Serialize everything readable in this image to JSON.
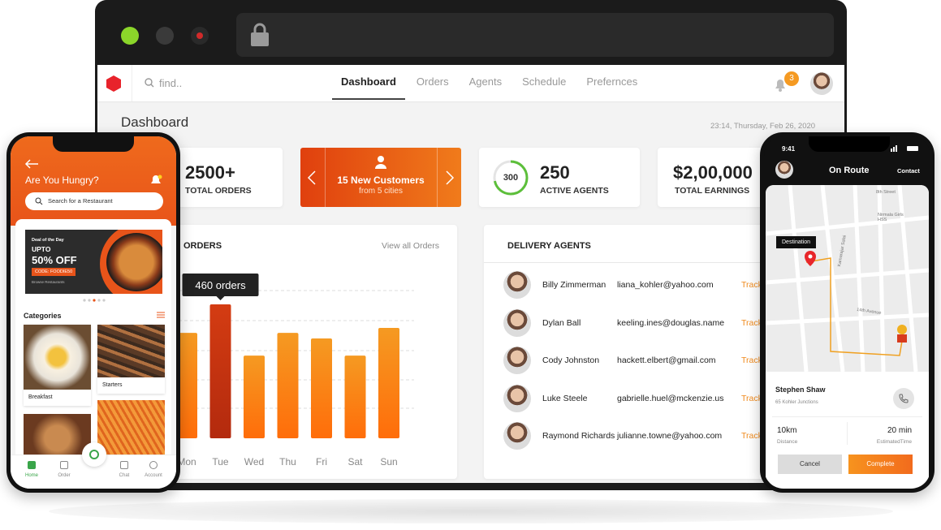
{
  "browser": {
    "search_placeholder": "find..",
    "nav": [
      "Dashboard",
      "Orders",
      "Agents",
      "Schedule",
      "Prefernces"
    ],
    "notification_count": "3"
  },
  "dashboard": {
    "title": "Dashboard",
    "datetime": "23:14, Thursday, Feb 26, 2020",
    "stats": [
      {
        "value": "2500+",
        "label": "TOTAL ORDERS"
      },
      {
        "title": "15 New Customers",
        "subtitle": "from 5 cities"
      },
      {
        "badge": "300",
        "value": "250",
        "label": "ACTIVE AGENTS"
      },
      {
        "value": "$2,00,000",
        "label": "TOTAL EARNINGS"
      }
    ],
    "orders_chart": {
      "type": "bar",
      "title": "ORDERS",
      "link": "View all Orders",
      "categories": [
        "Mon",
        "Tue",
        "Wed",
        "Thu",
        "Fri",
        "Sat",
        "Sun"
      ],
      "values": [
        362,
        460,
        284,
        362,
        343,
        284,
        379
      ],
      "value_labels": [
        null,
        "460 orders",
        null,
        null,
        null,
        null,
        null
      ]
    },
    "agents": {
      "title": "DELIVERY AGENTS",
      "rows": [
        {
          "name": "Billy Zimmerman",
          "email": "liana_kohler@yahoo.com",
          "action": "Track"
        },
        {
          "name": "Dylan Ball",
          "email": "keeling.ines@douglas.name",
          "action": "Track"
        },
        {
          "name": "Cody Johnston",
          "email": "hackett.elbert@gmail.com",
          "action": "Track"
        },
        {
          "name": "Luke Steele",
          "email": "gabrielle.huel@mckenzie.us",
          "action": "Track"
        },
        {
          "name": "Raymond Richards",
          "email": "julianne.towne@yahoo.com",
          "action": "Track"
        }
      ]
    }
  },
  "left_phone": {
    "header": "Are You Hungry?",
    "search": "Search for a Restaurant",
    "promo": {
      "tag": "Deal of the Day",
      "line1": "UPTO",
      "line2": "50% OFF",
      "code": "CODE: FOODIE50",
      "link": "Browse Restaurants"
    },
    "categories_title": "Categories",
    "categories": [
      "Breakfast",
      "Starters"
    ],
    "tabs": [
      "Home",
      "Order",
      "Chat",
      "Account"
    ]
  },
  "right_phone": {
    "time": "9:41",
    "title": "On Route",
    "action": "Contact",
    "map_label": "Destination",
    "streets": [
      "8th Street",
      "Nirmala Girls HSS",
      "Kamarajar Salai",
      "14th Avenue"
    ],
    "customer": "Stephen Shaw",
    "address": "65 Kohler Junctions",
    "distance": "10km",
    "distance_label": "Distance",
    "eta": "20 min",
    "eta_label": "EstimatedTime",
    "cancel": "Cancel",
    "complete": "Complete"
  }
}
